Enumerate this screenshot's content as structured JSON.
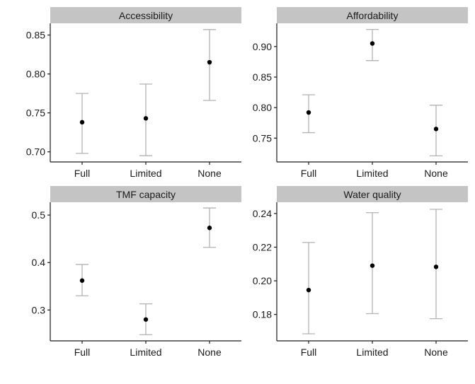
{
  "chart_data": [
    {
      "type": "scatter",
      "title": "Accessibility",
      "categories": [
        "Full",
        "Limited",
        "None"
      ],
      "values": [
        0.738,
        0.743,
        0.815
      ],
      "lower": [
        0.698,
        0.695,
        0.766
      ],
      "upper": [
        0.775,
        0.787,
        0.857
      ],
      "ylim": [
        0.687,
        0.865
      ],
      "yticks": [
        0.7,
        0.75,
        0.8,
        0.85
      ],
      "ytick_labels": [
        "0.70",
        "0.75",
        "0.80",
        "0.85"
      ]
    },
    {
      "type": "scatter",
      "title": "Affordability",
      "categories": [
        "Full",
        "Limited",
        "None"
      ],
      "values": [
        0.792,
        0.905,
        0.765
      ],
      "lower": [
        0.759,
        0.877,
        0.721
      ],
      "upper": [
        0.821,
        0.928,
        0.804
      ],
      "ylim": [
        0.711,
        0.938
      ],
      "yticks": [
        0.75,
        0.8,
        0.85,
        0.9
      ],
      "ytick_labels": [
        "0.75",
        "0.80",
        "0.85",
        "0.90"
      ]
    },
    {
      "type": "scatter",
      "title": "TMF capacity",
      "categories": [
        "Full",
        "Limited",
        "None"
      ],
      "values": [
        0.362,
        0.28,
        0.473
      ],
      "lower": [
        0.33,
        0.248,
        0.432
      ],
      "upper": [
        0.396,
        0.313,
        0.515
      ],
      "ylim": [
        0.235,
        0.527
      ],
      "yticks": [
        0.3,
        0.4,
        0.5
      ],
      "ytick_labels": [
        "0.3",
        "0.4",
        "0.5"
      ]
    },
    {
      "type": "scatter",
      "title": "Water quality",
      "categories": [
        "Full",
        "Limited",
        "None"
      ],
      "values": [
        0.1945,
        0.209,
        0.2083
      ],
      "lower": [
        0.1685,
        0.1805,
        0.1775
      ],
      "upper": [
        0.2228,
        0.2405,
        0.2425
      ],
      "ylim": [
        0.1643,
        0.2467
      ],
      "yticks": [
        0.18,
        0.2,
        0.22,
        0.24
      ],
      "ytick_labels": [
        "0.18",
        "0.20",
        "0.22",
        "0.24"
      ]
    }
  ]
}
